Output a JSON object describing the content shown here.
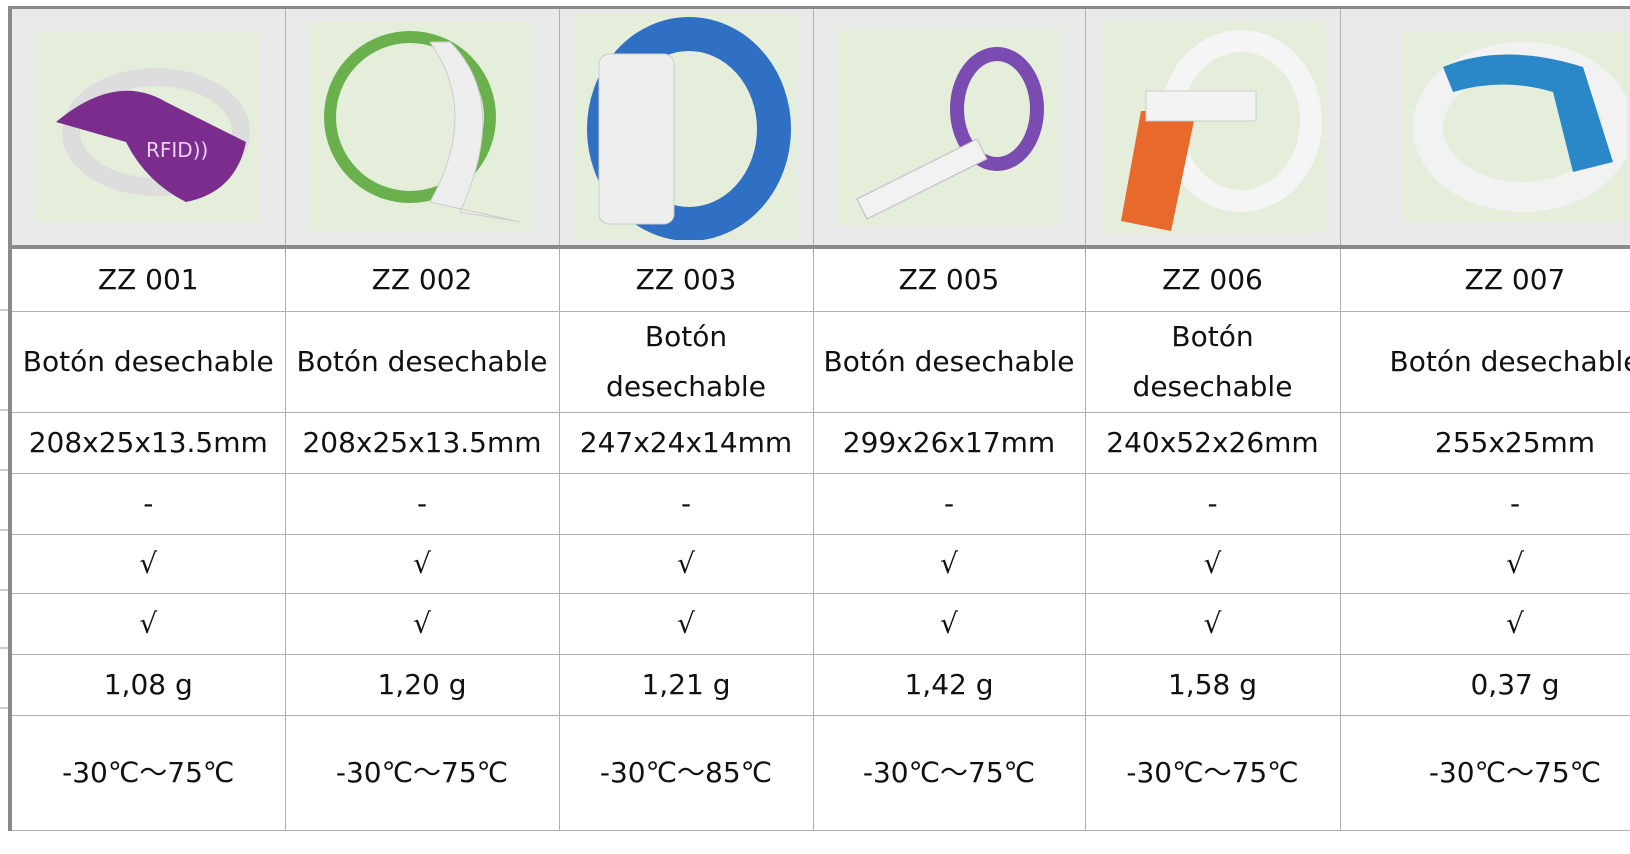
{
  "table": {
    "rows": [
      [
        "ZZ 001",
        "ZZ 002",
        "ZZ 003",
        "ZZ 005",
        "ZZ 006",
        "ZZ 007"
      ],
      [
        "Botón desechable",
        "Botón desechable",
        "Botón desechable",
        "Botón desechable",
        "Botón desechable",
        "Botón desechable"
      ],
      [
        "208x25x13.5mm",
        "208x25x13.5mm",
        "247x24x14mm",
        "299x26x17mm",
        "240x52x26mm",
        "255x25mm"
      ],
      [
        "-",
        "-",
        "-",
        "-",
        "-",
        "-"
      ],
      [
        "√",
        "√",
        "√",
        "√",
        "√",
        "√"
      ],
      [
        "√",
        "√",
        "√",
        "√",
        "√",
        "√"
      ],
      [
        "1,08 g",
        "1,20 g",
        "1,21 g",
        "1,42 g",
        "1,58 g",
        "0,37 g"
      ],
      [
        "-30℃～75℃",
        "-30℃～75℃",
        "-30℃～85℃",
        "-30℃～75℃",
        "-30℃～75℃",
        "-30℃～75℃"
      ]
    ]
  }
}
